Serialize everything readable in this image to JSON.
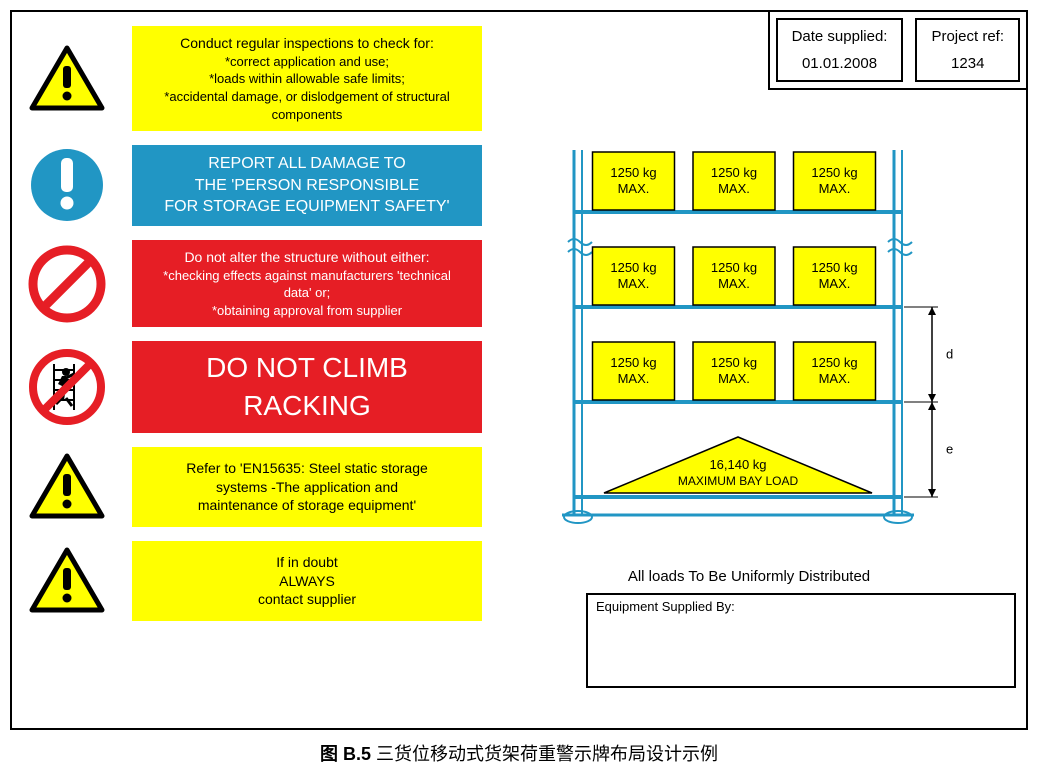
{
  "colors": {
    "yellow": "#ffff00",
    "blue": "#2196c4",
    "red": "#e61e25",
    "rack_blue": "#2196c4",
    "black": "#000000",
    "white": "#ffffff"
  },
  "header": {
    "date_label": "Date supplied:",
    "date_value": "01.01.2008",
    "project_label": "Project ref:",
    "project_value": "1234"
  },
  "rows": [
    {
      "icon": "warning-triangle",
      "bg": "yellow",
      "title": "Conduct regular inspections to check for:",
      "bullets": [
        "*correct application and use;",
        "*loads within allowable safe limits;",
        "*accidental damage, or dislodgement of structural components"
      ]
    },
    {
      "icon": "exclaim-circle",
      "bg": "blue",
      "lines": [
        "REPORT ALL DAMAGE TO",
        "THE 'PERSON RESPONSIBLE",
        "FOR STORAGE EQUIPMENT SAFETY'"
      ]
    },
    {
      "icon": "prohibit",
      "bg": "red",
      "title": "Do not alter the structure without either:",
      "bullets": [
        "*checking effects against manufacturers 'technical data' or;",
        "*obtaining approval from supplier"
      ]
    },
    {
      "icon": "no-climb",
      "bg": "red",
      "big": true,
      "lines": [
        "DO NOT CLIMB",
        "RACKING"
      ]
    },
    {
      "icon": "warning-triangle",
      "bg": "yellow",
      "lines": [
        "Refer to 'EN15635: Steel static storage",
        "systems -The application and",
        "maintenance of storage equipment'"
      ]
    },
    {
      "icon": "warning-triangle",
      "bg": "yellow",
      "lines": [
        "If in doubt",
        "ALWAYS",
        "contact supplier"
      ]
    }
  ],
  "rack": {
    "type": "infographic",
    "box_label_line1": "1250 kg",
    "box_label_line2": "MAX.",
    "shelves": 3,
    "boxes_per_shelf": 3,
    "bay_load_line1": "16,140 kg",
    "bay_load_line2": "MAXIMUM BAY LOAD",
    "dim_labels": [
      "d",
      "e"
    ],
    "box_fill": "#ffff00",
    "box_stroke": "#000000",
    "frame_stroke": "#2196c4",
    "distrib_text": "All loads To Be Uniformly Distributed",
    "text_color": "#000000"
  },
  "supplied_label": "Equipment Supplied By:",
  "caption_bold": "图 B.5",
  "caption_rest": "  三货位移动式货架荷重警示牌布局设计示例"
}
